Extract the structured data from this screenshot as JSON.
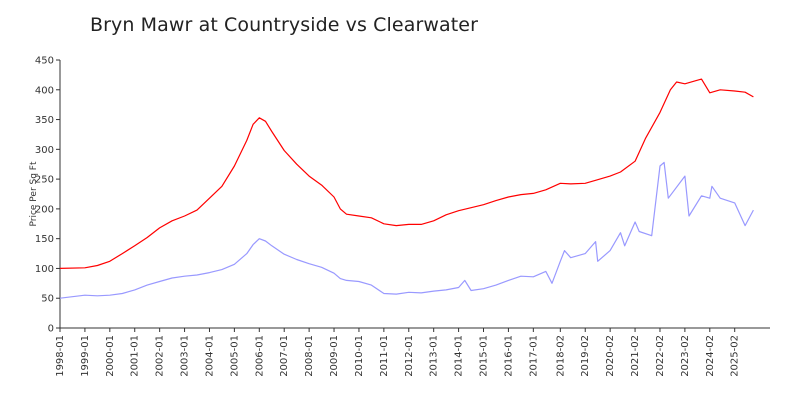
{
  "chart_data": {
    "type": "line",
    "title": "Bryn Mawr at Countryside vs Clearwater",
    "xlabel": "",
    "ylabel": "Price Per Sq Ft",
    "ylim": [
      0,
      450
    ],
    "yticks": [
      0,
      50,
      100,
      150,
      200,
      250,
      300,
      350,
      400,
      450
    ],
    "xlim": [
      "1998-01",
      "2026-07"
    ],
    "xticks": [
      "1998-01",
      "1999-01",
      "2000-01",
      "2001-01",
      "2002-01",
      "2003-01",
      "2004-01",
      "2005-01",
      "2006-01",
      "2007-01",
      "2008-01",
      "2009-01",
      "2010-01",
      "2011-01",
      "2012-01",
      "2013-01",
      "2014-01",
      "2015-01",
      "2016-01",
      "2017-01",
      "2018-02",
      "2019-02",
      "2020-02",
      "2021-02",
      "2022-02",
      "2023-02",
      "2024-02",
      "2025-02"
    ],
    "grid": false,
    "legend": "none",
    "series": [
      {
        "color": "#ff0000",
        "points": [
          [
            "1998-01",
            100
          ],
          [
            "1999-01",
            101
          ],
          [
            "1999-07",
            105
          ],
          [
            "2000-01",
            112
          ],
          [
            "2000-07",
            125
          ],
          [
            "2001-01",
            138
          ],
          [
            "2001-07",
            152
          ],
          [
            "2002-01",
            168
          ],
          [
            "2002-07",
            180
          ],
          [
            "2003-01",
            188
          ],
          [
            "2003-07",
            198
          ],
          [
            "2004-01",
            218
          ],
          [
            "2004-07",
            238
          ],
          [
            "2005-01",
            272
          ],
          [
            "2005-07",
            315
          ],
          [
            "2005-10",
            342
          ],
          [
            "2006-01",
            353
          ],
          [
            "2006-04",
            347
          ],
          [
            "2006-07",
            330
          ],
          [
            "2007-01",
            298
          ],
          [
            "2007-07",
            275
          ],
          [
            "2008-01",
            255
          ],
          [
            "2008-07",
            240
          ],
          [
            "2009-01",
            220
          ],
          [
            "2009-04",
            200
          ],
          [
            "2009-07",
            191
          ],
          [
            "2010-01",
            188
          ],
          [
            "2010-07",
            185
          ],
          [
            "2011-01",
            175
          ],
          [
            "2011-07",
            172
          ],
          [
            "2012-01",
            174
          ],
          [
            "2012-07",
            174
          ],
          [
            "2013-01",
            180
          ],
          [
            "2013-07",
            190
          ],
          [
            "2014-01",
            197
          ],
          [
            "2014-07",
            202
          ],
          [
            "2015-01",
            207
          ],
          [
            "2015-07",
            214
          ],
          [
            "2016-01",
            220
          ],
          [
            "2016-07",
            224
          ],
          [
            "2017-01",
            226
          ],
          [
            "2017-07",
            232
          ],
          [
            "2018-02",
            243
          ],
          [
            "2018-07",
            242
          ],
          [
            "2019-02",
            243
          ],
          [
            "2019-07",
            248
          ],
          [
            "2020-02",
            255
          ],
          [
            "2020-07",
            262
          ],
          [
            "2021-02",
            280
          ],
          [
            "2021-07",
            318
          ],
          [
            "2022-02",
            362
          ],
          [
            "2022-07",
            400
          ],
          [
            "2022-10",
            413
          ],
          [
            "2023-02",
            410
          ],
          [
            "2023-07",
            415
          ],
          [
            "2023-10",
            418
          ],
          [
            "2024-02",
            395
          ],
          [
            "2024-07",
            400
          ],
          [
            "2025-02",
            398
          ],
          [
            "2025-07",
            396
          ],
          [
            "2025-11",
            388
          ]
        ]
      },
      {
        "color": "#9999ff",
        "points": [
          [
            "1998-01",
            50
          ],
          [
            "1999-01",
            55
          ],
          [
            "1999-07",
            54
          ],
          [
            "2000-01",
            55
          ],
          [
            "2000-07",
            58
          ],
          [
            "2001-01",
            64
          ],
          [
            "2001-07",
            72
          ],
          [
            "2002-01",
            78
          ],
          [
            "2002-07",
            84
          ],
          [
            "2003-01",
            87
          ],
          [
            "2003-07",
            89
          ],
          [
            "2004-01",
            93
          ],
          [
            "2004-07",
            98
          ],
          [
            "2005-01",
            107
          ],
          [
            "2005-07",
            125
          ],
          [
            "2005-10",
            140
          ],
          [
            "2006-01",
            150
          ],
          [
            "2006-04",
            146
          ],
          [
            "2006-07",
            138
          ],
          [
            "2007-01",
            124
          ],
          [
            "2007-07",
            115
          ],
          [
            "2008-01",
            108
          ],
          [
            "2008-07",
            102
          ],
          [
            "2009-01",
            92
          ],
          [
            "2009-04",
            83
          ],
          [
            "2009-07",
            80
          ],
          [
            "2010-01",
            78
          ],
          [
            "2010-07",
            72
          ],
          [
            "2011-01",
            58
          ],
          [
            "2011-07",
            57
          ],
          [
            "2012-01",
            60
          ],
          [
            "2012-07",
            59
          ],
          [
            "2013-01",
            62
          ],
          [
            "2013-07",
            64
          ],
          [
            "2014-01",
            68
          ],
          [
            "2014-04",
            80
          ],
          [
            "2014-07",
            63
          ],
          [
            "2015-01",
            66
          ],
          [
            "2015-07",
            72
          ],
          [
            "2016-01",
            80
          ],
          [
            "2016-07",
            87
          ],
          [
            "2017-01",
            86
          ],
          [
            "2017-07",
            95
          ],
          [
            "2017-10",
            75
          ],
          [
            "2018-02",
            112
          ],
          [
            "2018-04",
            130
          ],
          [
            "2018-07",
            118
          ],
          [
            "2019-02",
            125
          ],
          [
            "2019-07",
            145
          ],
          [
            "2019-08",
            112
          ],
          [
            "2020-02",
            130
          ],
          [
            "2020-07",
            160
          ],
          [
            "2020-09",
            138
          ],
          [
            "2021-02",
            178
          ],
          [
            "2021-04",
            162
          ],
          [
            "2021-10",
            155
          ],
          [
            "2022-02",
            272
          ],
          [
            "2022-04",
            278
          ],
          [
            "2022-06",
            218
          ],
          [
            "2023-02",
            255
          ],
          [
            "2023-04",
            188
          ],
          [
            "2023-10",
            222
          ],
          [
            "2024-02",
            218
          ],
          [
            "2024-03",
            238
          ],
          [
            "2024-07",
            218
          ],
          [
            "2025-02",
            210
          ],
          [
            "2025-07",
            172
          ],
          [
            "2025-11",
            198
          ]
        ]
      }
    ]
  }
}
